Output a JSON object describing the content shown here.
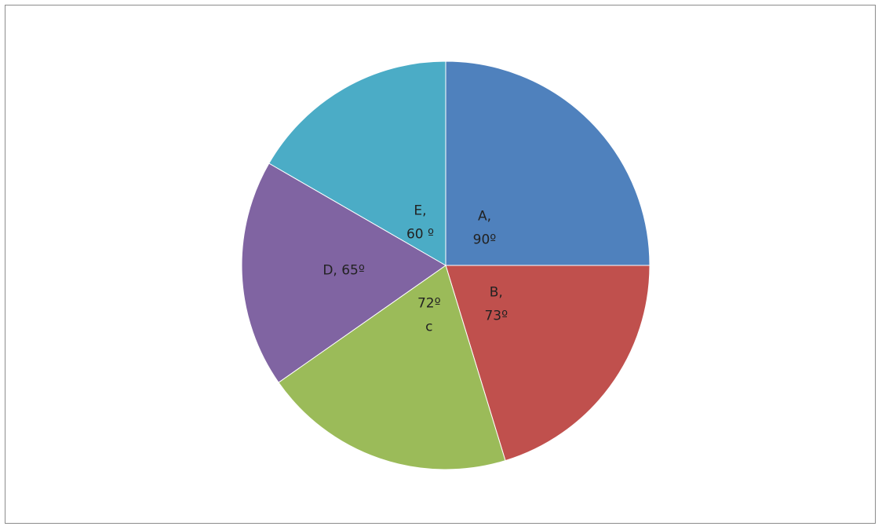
{
  "chart_data": {
    "type": "pie",
    "start_angle_deg": 0,
    "direction": "clockwise",
    "slices": [
      {
        "category": "A",
        "value": 90,
        "line1": "A,",
        "line2": "90º",
        "color": "#4f81bd"
      },
      {
        "category": "B",
        "value": 73,
        "line1": "B,",
        "line2": "73º",
        "color": "#c0504d"
      },
      {
        "category": "C",
        "value": 72,
        "line1": "72º",
        "line2": "c",
        "color": "#9bbb59"
      },
      {
        "category": "D",
        "value": 65,
        "line1": "D, 65º",
        "line2": "",
        "color": "#8064a2"
      },
      {
        "category": "E",
        "value": 60,
        "line1": "E,",
        "line2": "60 º",
        "color": "#4bacc6"
      }
    ]
  }
}
